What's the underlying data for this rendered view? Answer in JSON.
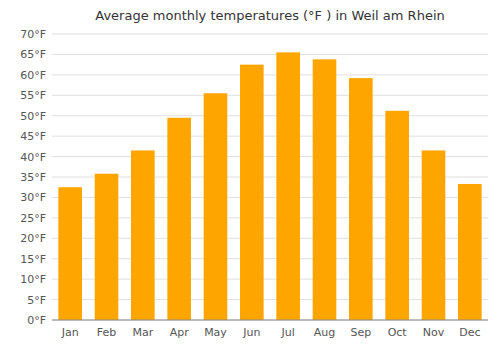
{
  "chart_data": {
    "type": "bar",
    "title": "Average monthly temperatures (°F ) in Weil am Rhein",
    "categories": [
      "Jan",
      "Feb",
      "Mar",
      "Apr",
      "May",
      "Jun",
      "Jul",
      "Aug",
      "Sep",
      "Oct",
      "Nov",
      "Dec"
    ],
    "values": [
      32.5,
      35.8,
      41.5,
      49.5,
      55.5,
      62.5,
      65.5,
      63.8,
      59.2,
      51.2,
      41.5,
      33.3
    ],
    "color": "#FFA500",
    "ylim": [
      0,
      70
    ],
    "yticks": [
      {
        "value": 0,
        "label": "0°F"
      },
      {
        "value": 5,
        "label": "5°F"
      },
      {
        "value": 10,
        "label": "10°F"
      },
      {
        "value": 15,
        "label": "15°F"
      },
      {
        "value": 20,
        "label": "20°F"
      },
      {
        "value": 25,
        "label": "25°F"
      },
      {
        "value": 30,
        "label": "30°F"
      },
      {
        "value": 35,
        "label": "35°F"
      },
      {
        "value": 40,
        "label": "40°F"
      },
      {
        "value": 45,
        "label": "45°F"
      },
      {
        "value": 50,
        "label": "50°F"
      },
      {
        "value": 55,
        "label": "55°F"
      },
      {
        "value": 60,
        "label": "60°F"
      },
      {
        "value": 65,
        "label": "65°F"
      },
      {
        "value": 70,
        "label": "70°F"
      }
    ],
    "grid": true
  }
}
